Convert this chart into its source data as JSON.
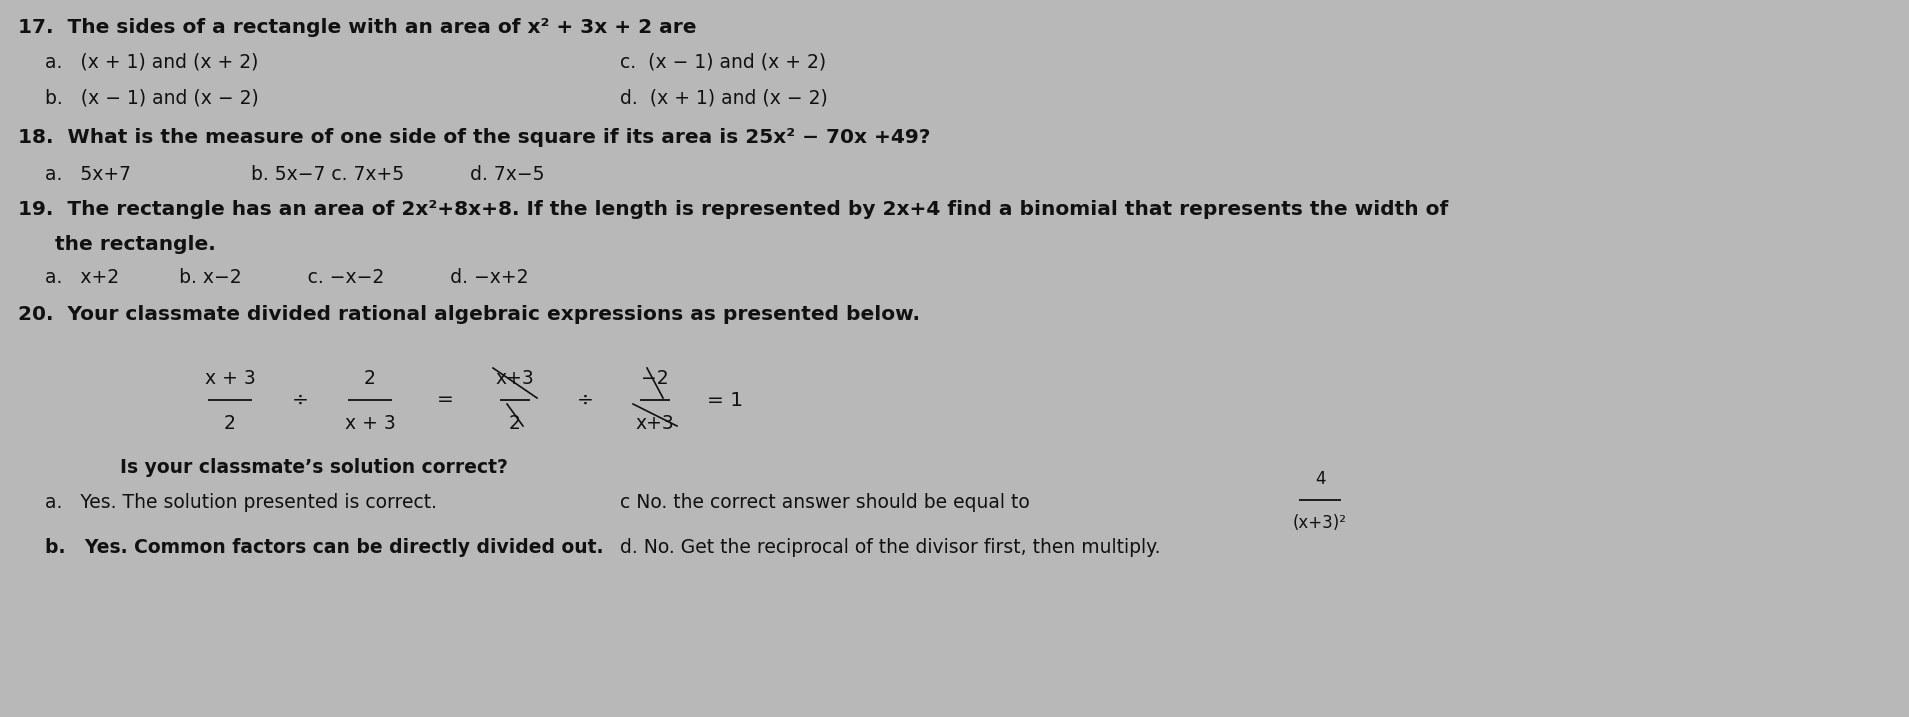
{
  "bg_color": "#b8b8b8",
  "text_color": "#111111",
  "figsize": [
    19.09,
    7.17
  ],
  "dpi": 100,
  "q17_header": "17.  The sides of a rectangle with an area of x² + 3x + 2 are",
  "q17_a": "a.   (x + 1) and (x + 2)",
  "q17_b": "b.   (x − 1) and (x − 2)",
  "q17_c": "c.  (x − 1) and (x + 2)",
  "q17_d": "d.  (x + 1) and (x − 2)",
  "q18_header": "18.  What is the measure of one side of the square if its area is 25x² − 70x +49?",
  "q18_choices": "a.   5x+7                    b. 5x−7 c. 7x+5           d. 7x−5",
  "q19_header": "19.  The rectangle has an area of 2x²+8x+8. If the length is represented by 2x+4 find a binomial that represents the width of",
  "q19_header2": "the rectangle.",
  "q19_choices": "a.   x+2          b. x−2           c. −x−2           d. −x+2",
  "q20_header": "20.  Your classmate divided rational algebraic expressions as presented below.",
  "q20_question": "Is your classmate’s solution correct?",
  "q20_a": "a.   Yes. The solution presented is correct.",
  "q20_b": "b.   Yes. Common factors can be directly divided out.",
  "q20_c": "c No. the correct answer should be equal to",
  "q20_d": "d. No. Get the reciprocal of the divisor first, then multiply.",
  "frac1_num": "x + 3",
  "frac1_den": "2",
  "frac2_num": "2",
  "frac2_den": "x + 3",
  "frac3_num": "x+3",
  "frac3_den": "2",
  "frac4_num": "−2",
  "frac4_den": "x+3",
  "frac_c_num": "4",
  "frac_c_den": "(x+3)²"
}
